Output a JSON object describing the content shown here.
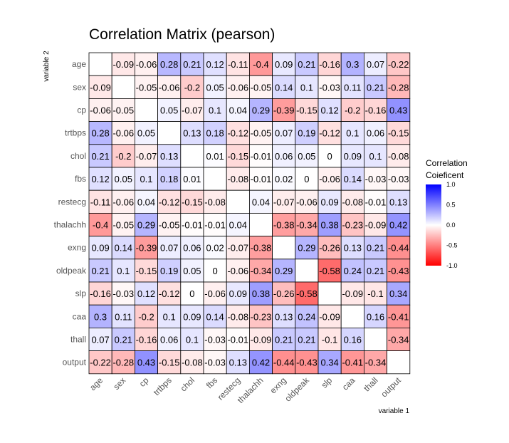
{
  "chart_data": {
    "type": "heatmap",
    "title": "Correlation Matrix (pearson)",
    "xlabel": "variable 1",
    "ylabel": "variable 2",
    "variables": [
      "age",
      "sex",
      "cp",
      "trtbps",
      "chol",
      "fbs",
      "restecg",
      "thalachh",
      "exng",
      "oldpeak",
      "slp",
      "caa",
      "thall",
      "output"
    ],
    "values": [
      [
        null,
        "-0.09",
        "-0.06",
        "0.28",
        "0.21",
        "0.12",
        "-0.11",
        "-0.4",
        "0.09",
        "0.21",
        "-0.16",
        "0.3",
        "0.07",
        "-0.22"
      ],
      [
        "-0.09",
        null,
        "-0.05",
        "-0.06",
        "-0.2",
        "0.05",
        "-0.06",
        "-0.05",
        "0.14",
        "0.1",
        "-0.03",
        "0.11",
        "0.21",
        "-0.28"
      ],
      [
        "-0.06",
        "-0.05",
        null,
        "0.05",
        "-0.07",
        "0.1",
        "0.04",
        "0.29",
        "-0.39",
        "-0.15",
        "0.12",
        "-0.2",
        "-0.16",
        "0.43"
      ],
      [
        "0.28",
        "-0.06",
        "0.05",
        null,
        "0.13",
        "0.18",
        "-0.12",
        "-0.05",
        "0.07",
        "0.19",
        "-0.12",
        "0.1",
        "0.06",
        "-0.15"
      ],
      [
        "0.21",
        "-0.2",
        "-0.07",
        "0.13",
        null,
        "0.01",
        "-0.15",
        "-0.01",
        "0.06",
        "0.05",
        "0",
        "0.09",
        "0.1",
        "-0.08"
      ],
      [
        "0.12",
        "0.05",
        "0.1",
        "0.18",
        "0.01",
        null,
        "-0.08",
        "-0.01",
        "0.02",
        "0",
        "-0.06",
        "0.14",
        "-0.03",
        "-0.03"
      ],
      [
        "-0.11",
        "-0.06",
        "0.04",
        "-0.12",
        "-0.15",
        "-0.08",
        null,
        "0.04",
        "-0.07",
        "-0.06",
        "0.09",
        "-0.08",
        "-0.01",
        "0.13"
      ],
      [
        "-0.4",
        "-0.05",
        "0.29",
        "-0.05",
        "-0.01",
        "-0.01",
        "0.04",
        null,
        "-0.38",
        "-0.34",
        "0.38",
        "-0.23",
        "-0.09",
        "0.42"
      ],
      [
        "0.09",
        "0.14",
        "-0.39",
        "0.07",
        "0.06",
        "0.02",
        "-0.07",
        "-0.38",
        null,
        "0.29",
        "-0.26",
        "0.13",
        "0.21",
        "-0.44"
      ],
      [
        "0.21",
        "0.1",
        "-0.15",
        "0.19",
        "0.05",
        "0",
        "-0.06",
        "-0.34",
        "0.29",
        null,
        "-0.58",
        "0.24",
        "0.21",
        "-0.43"
      ],
      [
        "-0.16",
        "-0.03",
        "0.12",
        "-0.12",
        "0",
        "-0.06",
        "0.09",
        "0.38",
        "-0.26",
        "-0.58",
        null,
        "-0.09",
        "-0.1",
        "0.34"
      ],
      [
        "0.3",
        "0.11",
        "-0.2",
        "0.1",
        "0.09",
        "0.14",
        "-0.08",
        "-0.23",
        "0.13",
        "0.24",
        "-0.09",
        null,
        "0.16",
        "-0.41"
      ],
      [
        "0.07",
        "0.21",
        "-0.16",
        "0.06",
        "0.1",
        "-0.03",
        "-0.01",
        "-0.09",
        "0.21",
        "0.21",
        "-0.1",
        "0.16",
        null,
        "-0.34"
      ],
      [
        "-0.22",
        "-0.28",
        "0.43",
        "-0.15",
        "-0.08",
        "-0.03",
        "0.13",
        "0.42",
        "-0.44",
        "-0.43",
        "0.34",
        "-0.41",
        "-0.34",
        null
      ]
    ],
    "scale": {
      "min": -1,
      "max": 1,
      "low_color": "#ff0000",
      "mid_color": "#ffffff",
      "high_color": "#0000ff"
    },
    "legend": {
      "title_line1": "Correlation",
      "title_line2": "Coieficent",
      "ticks": [
        "1.0",
        "0.5",
        "0.0",
        "-0.5",
        "-1.0"
      ],
      "placement": "right"
    }
  }
}
